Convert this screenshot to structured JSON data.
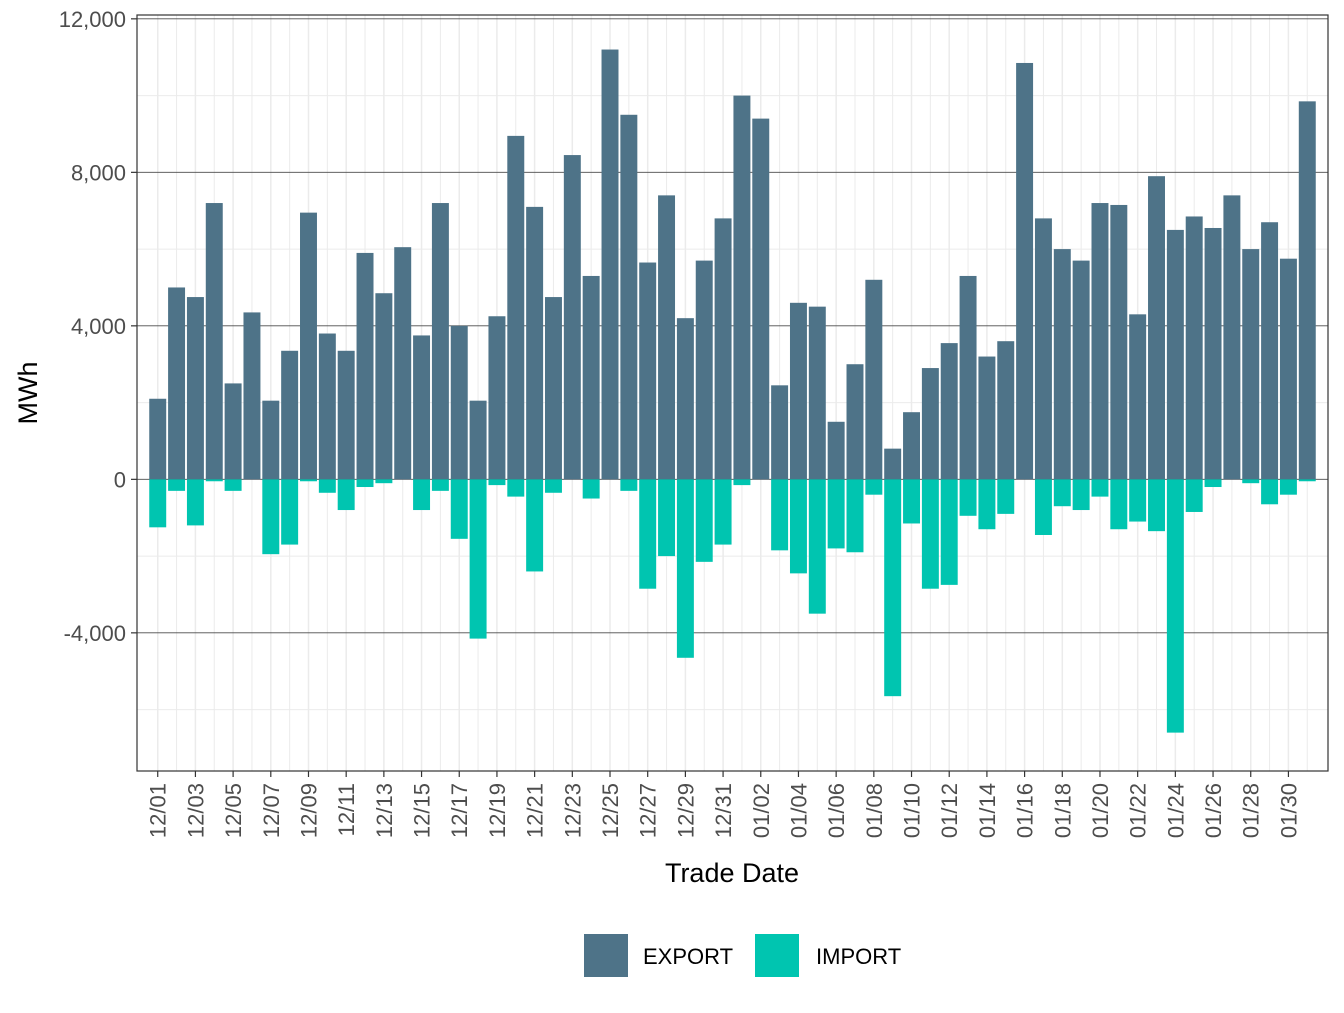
{
  "chart_data": {
    "type": "bar",
    "stacked": true,
    "xlabel": "Trade Date",
    "ylabel": "MWh",
    "ylim": [
      -7600,
      12100
    ],
    "y_major_ticks": [
      -4000,
      0,
      4000,
      8000,
      12000
    ],
    "y_tick_labels": [
      "-4,000",
      "0",
      "4,000",
      "8,000",
      "12,000"
    ],
    "y_minor_ticks": [
      -6000,
      -2000,
      2000,
      6000,
      10000
    ],
    "grid": true,
    "legend_position": "bottom",
    "x_tick_labels": [
      "12/01",
      "12/03",
      "12/05",
      "12/07",
      "12/09",
      "12/11",
      "12/13",
      "12/15",
      "12/17",
      "12/19",
      "12/21",
      "12/23",
      "12/25",
      "12/27",
      "12/29",
      "12/31",
      "01/02",
      "01/04",
      "01/06",
      "01/08",
      "01/10",
      "01/12",
      "01/14",
      "01/16",
      "01/18",
      "01/20",
      "01/22",
      "01/24",
      "01/26",
      "01/28",
      "01/30"
    ],
    "categories": [
      "12/01",
      "12/02",
      "12/03",
      "12/04",
      "12/05",
      "12/06",
      "12/07",
      "12/08",
      "12/09",
      "12/10",
      "12/11",
      "12/12",
      "12/13",
      "12/14",
      "12/15",
      "12/16",
      "12/17",
      "12/18",
      "12/19",
      "12/20",
      "12/21",
      "12/22",
      "12/23",
      "12/24",
      "12/25",
      "12/26",
      "12/27",
      "12/28",
      "12/29",
      "12/30",
      "12/31",
      "01/01",
      "01/02",
      "01/03",
      "01/04",
      "01/05",
      "01/06",
      "01/07",
      "01/08",
      "01/09",
      "01/10",
      "01/11",
      "01/12",
      "01/13",
      "01/14",
      "01/15",
      "01/16",
      "01/17",
      "01/18",
      "01/19",
      "01/20",
      "01/21",
      "01/22",
      "01/23",
      "01/24",
      "01/25",
      "01/26",
      "01/27",
      "01/28",
      "01/29",
      "01/30",
      "01/31"
    ],
    "series": [
      {
        "name": "EXPORT",
        "color": "#4e7388",
        "values": [
          2100,
          5000,
          4750,
          7200,
          2500,
          4350,
          2050,
          3350,
          6950,
          3800,
          3350,
          5900,
          4850,
          6050,
          3750,
          7200,
          4000,
          2050,
          4250,
          8950,
          7100,
          4750,
          8450,
          5300,
          11200,
          9500,
          5650,
          7400,
          4200,
          5700,
          6800,
          10000,
          9400,
          2450,
          4600,
          4500,
          1500,
          3000,
          5200,
          800,
          1750,
          2900,
          3550,
          5300,
          3200,
          3600,
          10850,
          6800,
          6000,
          5700,
          7200,
          7150,
          4300,
          7900,
          6500,
          6850,
          6550,
          7400,
          6000,
          6700,
          5750,
          9850
        ]
      },
      {
        "name": "IMPORT",
        "color": "#00c5b0",
        "values": [
          -1250,
          -300,
          -1200,
          -50,
          -300,
          0,
          -1950,
          -1700,
          -50,
          -350,
          -800,
          -200,
          -100,
          0,
          -800,
          -300,
          -1550,
          -4150,
          -150,
          -450,
          -2400,
          -350,
          0,
          -500,
          0,
          -300,
          -2850,
          -2000,
          -4650,
          -2150,
          -1700,
          -150,
          0,
          -1850,
          -2450,
          -3500,
          -1800,
          -1900,
          -400,
          -5650,
          -1150,
          -2850,
          -2750,
          -950,
          -1300,
          -900,
          0,
          -1450,
          -700,
          -800,
          -450,
          -1300,
          -1100,
          -1350,
          -6600,
          -850,
          -200,
          0,
          -100,
          -650,
          -400,
          -50
        ]
      }
    ]
  }
}
